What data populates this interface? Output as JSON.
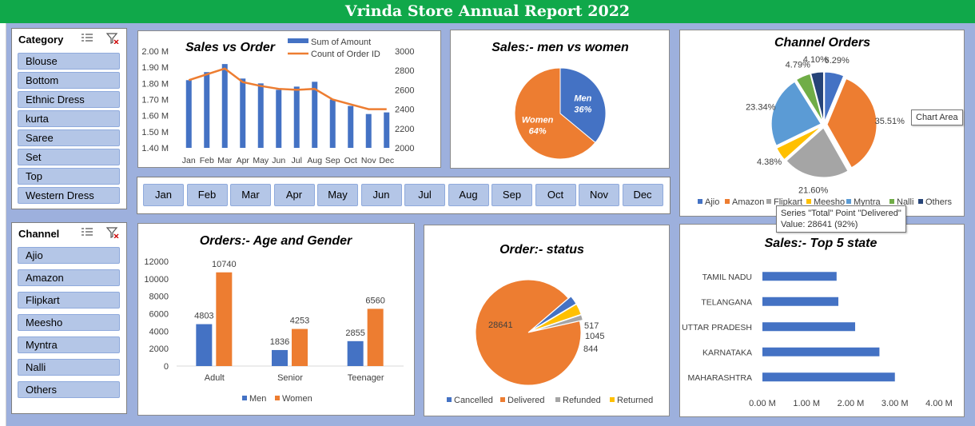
{
  "banner": {
    "title": "Vrinda Store Annual Report 2022"
  },
  "colors": {
    "banner": "#10a84a",
    "background": "#9db0dd",
    "blue": "#4472c4",
    "orange": "#ed7d31",
    "gray": "#a5a5a5",
    "yellow": "#ffc000",
    "lightblue": "#5b9bd5",
    "green": "#70ad47",
    "navy": "#264478",
    "slicer_item": "#b4c6e7"
  },
  "category_slicer": {
    "title": "Category",
    "icons": [
      "multi-select-icon",
      "clear-filter-icon"
    ],
    "items": [
      "Blouse",
      "Bottom",
      "Ethnic Dress",
      "kurta",
      "Saree",
      "Set",
      "Top",
      "Western Dress"
    ]
  },
  "channel_slicer": {
    "title": "Channel",
    "icons": [
      "multi-select-icon",
      "clear-filter-icon"
    ],
    "items": [
      "Ajio",
      "Amazon",
      "Flipkart",
      "Meesho",
      "Myntra",
      "Nalli",
      "Others"
    ]
  },
  "month_slicer": {
    "items": [
      "Jan",
      "Feb",
      "Mar",
      "Apr",
      "May",
      "Jun",
      "Jul",
      "Aug",
      "Sep",
      "Oct",
      "Nov",
      "Dec"
    ]
  },
  "tooltips": {
    "chart_area": "Chart Area",
    "delivered_line1": "Series \"Total\" Point \"Delivered\"",
    "delivered_line2": "Value: 28641 (92%)"
  },
  "chart_data": [
    {
      "id": "sales-vs-order",
      "type": "bar",
      "title": "Sales vs Order",
      "categories": [
        "Jan",
        "Feb",
        "Mar",
        "Apr",
        "May",
        "Jun",
        "Jul",
        "Aug",
        "Sep",
        "Oct",
        "Nov",
        "Dec"
      ],
      "series": [
        {
          "name": "Sum of Amount",
          "type": "bar",
          "axis": "left",
          "values": [
            1.82,
            1.87,
            1.92,
            1.83,
            1.8,
            1.76,
            1.78,
            1.81,
            1.7,
            1.66,
            1.61,
            1.62
          ]
        },
        {
          "name": "Count of Order ID",
          "type": "line",
          "axis": "right",
          "values": [
            2700,
            2760,
            2820,
            2680,
            2640,
            2610,
            2600,
            2610,
            2500,
            2450,
            2400,
            2400
          ]
        }
      ],
      "ylim": [
        1.4,
        2.0
      ],
      "yticks": [
        "2.00 M",
        "1.90 M",
        "1.80 M",
        "1.70 M",
        "1.60 M",
        "1.50 M",
        "1.40 M"
      ],
      "y2lim": [
        2000,
        3000
      ],
      "y2ticks": [
        "3000",
        "2800",
        "2600",
        "2400",
        "2200",
        "2000"
      ],
      "legend": "top-right"
    },
    {
      "id": "sales-men-vs-women",
      "type": "pie",
      "title": "Sales:- men vs women",
      "slices": [
        {
          "label": "Men",
          "pct_label": "36%",
          "value": 36
        },
        {
          "label": "Women",
          "pct_label": "64%",
          "value": 64
        }
      ]
    },
    {
      "id": "channel-orders",
      "type": "pie",
      "title": "Channel Orders",
      "slices": [
        {
          "label": "Ajio",
          "value": 6.29,
          "pct_label": "6.29%"
        },
        {
          "label": "Amazon",
          "value": 35.51,
          "pct_label": "35.51%"
        },
        {
          "label": "Flipkart",
          "value": 21.6,
          "pct_label": "21.60%"
        },
        {
          "label": "Meesho",
          "value": 4.38,
          "pct_label": "4.38%"
        },
        {
          "label": "Myntra",
          "value": 23.34,
          "pct_label": "23.34%"
        },
        {
          "label": "Nalli",
          "value": 4.79,
          "pct_label": "4.79%"
        },
        {
          "label": "Others",
          "value": 4.1,
          "pct_label": "4.10%"
        }
      ],
      "legend": "bottom"
    },
    {
      "id": "orders-age-gender",
      "type": "bar",
      "title": "Orders:- Age and Gender",
      "categories": [
        "Adult",
        "Senior",
        "Teenager"
      ],
      "series": [
        {
          "name": "Men",
          "values": [
            4803,
            1836,
            2855
          ]
        },
        {
          "name": "Women",
          "values": [
            10740,
            4253,
            6560
          ]
        }
      ],
      "ylim": [
        0,
        12000
      ],
      "yticks": [
        "12000",
        "10000",
        "8000",
        "6000",
        "4000",
        "2000",
        "0"
      ],
      "legend": "bottom"
    },
    {
      "id": "order-status",
      "type": "pie",
      "title": "Order:- status",
      "slices": [
        {
          "label": "Cancelled",
          "value": 844,
          "pct_label": "844"
        },
        {
          "label": "Delivered",
          "value": 28641,
          "pct_label": "28641"
        },
        {
          "label": "Refunded",
          "value": 517,
          "pct_label": "517"
        },
        {
          "label": "Returned",
          "value": 1045,
          "pct_label": "1045"
        }
      ],
      "legend": "bottom"
    },
    {
      "id": "top-5-states",
      "type": "bar",
      "orientation": "horizontal",
      "title": "Sales:- Top 5 state",
      "categories": [
        "TAMIL NADU",
        "TELANGANA",
        "UTTAR PRADESH",
        "KARNATAKA",
        "MAHARASHTRA"
      ],
      "values": [
        1.68,
        1.72,
        2.1,
        2.65,
        3.0
      ],
      "xlim": [
        0,
        4
      ],
      "xticks": [
        "0.00 M",
        "1.00 M",
        "2.00 M",
        "3.00 M",
        "4.00 M"
      ]
    }
  ]
}
